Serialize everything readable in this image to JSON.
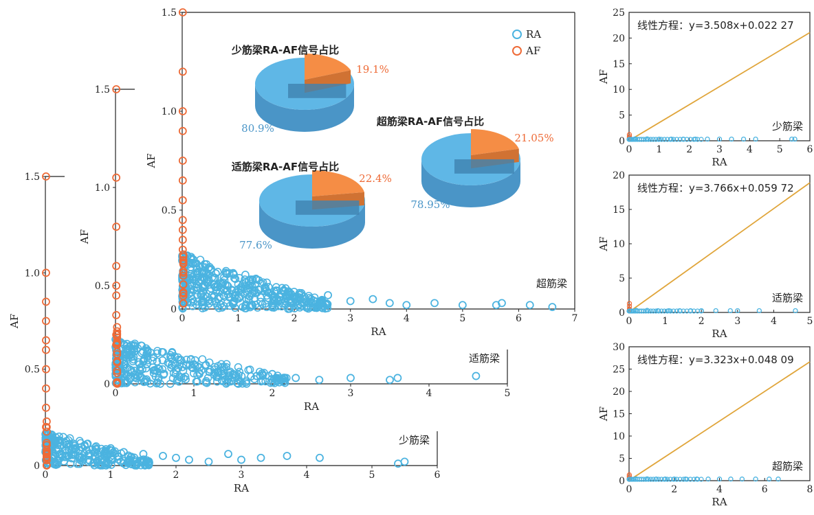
{
  "colors": {
    "ra": "#4bb3e0",
    "af": "#ee6a36",
    "fit_line": "#e0a53a",
    "pie_ra": "#5fb7e6",
    "pie_af": "#f58d45",
    "pie_ra_dark": "#4a95c7",
    "pie_af_dark": "#d07233"
  },
  "chart_data": [
    {
      "type": "scatter",
      "label": "少筋梁",
      "xlabel": "RA",
      "ylabel": "AF",
      "xlim": [
        0,
        6
      ],
      "ylim": [
        0,
        1.5
      ],
      "xticks": [
        "0",
        "1",
        "2",
        "3",
        "4",
        "5",
        "6"
      ],
      "yticks": [
        "0",
        "0.5",
        "1.0",
        "1.5"
      ],
      "series": [
        {
          "name": "RA",
          "marker": "circle-open",
          "points": [
            [
              0.2,
              0.12
            ],
            [
              0.4,
              0.08
            ],
            [
              0.6,
              0.1
            ],
            [
              0.8,
              0.06
            ],
            [
              1.0,
              0.09
            ],
            [
              1.2,
              0.07
            ],
            [
              1.5,
              0.06
            ],
            [
              1.8,
              0.05
            ],
            [
              2.0,
              0.04
            ],
            [
              2.2,
              0.03
            ],
            [
              2.5,
              0.02
            ],
            [
              2.8,
              0.06
            ],
            [
              3.0,
              0.03
            ],
            [
              3.3,
              0.04
            ],
            [
              3.7,
              0.05
            ],
            [
              4.2,
              0.04
            ],
            [
              5.4,
              0.01
            ],
            [
              5.5,
              0.02
            ]
          ]
        },
        {
          "name": "AF",
          "marker": "circle-open",
          "points": [
            [
              0.01,
              1.5
            ],
            [
              0.01,
              1.0
            ],
            [
              0.01,
              0.85
            ],
            [
              0.01,
              0.75
            ],
            [
              0.01,
              0.65
            ],
            [
              0.01,
              0.6
            ],
            [
              0.01,
              0.5
            ],
            [
              0.01,
              0.4
            ],
            [
              0.01,
              0.3
            ],
            [
              0.01,
              0.2
            ]
          ]
        }
      ]
    },
    {
      "type": "scatter",
      "label": "适筋梁",
      "xlabel": "RA",
      "ylabel": "AF",
      "xlim": [
        0,
        5
      ],
      "ylim": [
        0,
        1.5
      ],
      "xticks": [
        "0",
        "1",
        "2",
        "3",
        "4",
        "5"
      ],
      "yticks": [
        "0",
        "0.5",
        "1.0",
        "1.5"
      ],
      "series": [
        {
          "name": "RA",
          "marker": "circle-open",
          "points": [
            [
              0.2,
              0.15
            ],
            [
              0.4,
              0.1
            ],
            [
              0.6,
              0.12
            ],
            [
              0.8,
              0.08
            ],
            [
              1.0,
              0.1
            ],
            [
              1.2,
              0.06
            ],
            [
              1.5,
              0.05
            ],
            [
              1.8,
              0.04
            ],
            [
              2.0,
              0.05
            ],
            [
              2.3,
              0.03
            ],
            [
              2.6,
              0.02
            ],
            [
              3.0,
              0.03
            ],
            [
              3.5,
              0.02
            ],
            [
              3.6,
              0.03
            ],
            [
              4.6,
              0.04
            ]
          ]
        },
        {
          "name": "AF",
          "marker": "circle-open",
          "points": [
            [
              0.01,
              1.5
            ],
            [
              0.01,
              1.05
            ],
            [
              0.01,
              0.8
            ],
            [
              0.01,
              0.6
            ],
            [
              0.01,
              0.5
            ],
            [
              0.01,
              0.45
            ],
            [
              0.01,
              0.35
            ],
            [
              0.01,
              0.25
            ],
            [
              0.01,
              0.2
            ]
          ]
        }
      ]
    },
    {
      "type": "scatter",
      "label": "超筋梁",
      "xlabel": "RA",
      "ylabel": "AF",
      "xlim": [
        0,
        7
      ],
      "ylim": [
        0,
        1.5
      ],
      "xticks": [
        "0",
        "1",
        "2",
        "3",
        "4",
        "5",
        "6",
        "7"
      ],
      "yticks": [
        "0",
        "0.5",
        "1.0",
        "1.5"
      ],
      "legend": [
        "RA",
        "AF"
      ],
      "series": [
        {
          "name": "RA",
          "marker": "circle-open",
          "points": [
            [
              0.2,
              0.25
            ],
            [
              0.4,
              0.15
            ],
            [
              0.6,
              0.18
            ],
            [
              0.8,
              0.12
            ],
            [
              1.0,
              0.1
            ],
            [
              1.3,
              0.08
            ],
            [
              1.6,
              0.07
            ],
            [
              2.0,
              0.06
            ],
            [
              2.3,
              0.05
            ],
            [
              2.6,
              0.07
            ],
            [
              3.0,
              0.04
            ],
            [
              3.4,
              0.05
            ],
            [
              3.7,
              0.03
            ],
            [
              4.0,
              0.02
            ],
            [
              4.5,
              0.03
            ],
            [
              5.0,
              0.02
            ],
            [
              5.6,
              0.02
            ],
            [
              5.7,
              0.03
            ],
            [
              6.2,
              0.02
            ],
            [
              6.6,
              0.01
            ]
          ]
        },
        {
          "name": "AF",
          "marker": "circle-open",
          "points": [
            [
              0.01,
              1.5
            ],
            [
              0.01,
              1.2
            ],
            [
              0.01,
              1.0
            ],
            [
              0.01,
              0.9
            ],
            [
              0.01,
              0.75
            ],
            [
              0.01,
              0.65
            ],
            [
              0.01,
              0.55
            ],
            [
              0.01,
              0.45
            ],
            [
              0.01,
              0.4
            ],
            [
              0.01,
              0.35
            ],
            [
              0.01,
              0.3
            ]
          ]
        }
      ]
    },
    {
      "type": "pie",
      "title": "少筋梁RA-AF信号占比",
      "slices": [
        {
          "name": "RA",
          "value": 80.9,
          "label": "80.9%"
        },
        {
          "name": "AF",
          "value": 19.1,
          "label": "19.1%"
        }
      ]
    },
    {
      "type": "pie",
      "title": "适筋梁RA-AF信号占比",
      "slices": [
        {
          "name": "RA",
          "value": 77.6,
          "label": "77.6%"
        },
        {
          "name": "AF",
          "value": 22.4,
          "label": "22.4%"
        }
      ]
    },
    {
      "type": "pie",
      "title": "超筋梁RA-AF信号占比",
      "slices": [
        {
          "name": "RA",
          "value": 78.95,
          "label": "78.95%"
        },
        {
          "name": "AF",
          "value": 21.05,
          "label": "21.05%"
        }
      ]
    },
    {
      "type": "scatter",
      "label": "少筋梁",
      "equation": "线性方程：y=3.508x+0.022 27",
      "fit": {
        "slope": 3.508,
        "intercept": 0.02227
      },
      "xlabel": "RA",
      "ylabel": "AF",
      "xlim": [
        0,
        6
      ],
      "ylim": [
        0,
        25
      ],
      "xticks": [
        "0",
        "1",
        "2",
        "3",
        "4",
        "5",
        "6"
      ],
      "yticks": [
        "0",
        "5",
        "10",
        "15",
        "20",
        "25"
      ],
      "series": [
        {
          "name": "RA",
          "points": [
            [
              0.2,
              0.1
            ],
            [
              0.6,
              0.1
            ],
            [
              1.0,
              0.05
            ],
            [
              1.4,
              0.05
            ],
            [
              1.8,
              0.05
            ],
            [
              2.2,
              0.05
            ],
            [
              2.6,
              0.05
            ],
            [
              3.0,
              0.05
            ],
            [
              3.4,
              0.05
            ],
            [
              3.8,
              0.05
            ],
            [
              4.2,
              0.05
            ],
            [
              5.4,
              0.05
            ],
            [
              5.5,
              0.05
            ]
          ]
        },
        {
          "name": "AF",
          "points": [
            [
              0.01,
              1.2
            ],
            [
              0.01,
              0.8
            ],
            [
              0.01,
              0.5
            ],
            [
              0.01,
              0.3
            ]
          ]
        }
      ]
    },
    {
      "type": "scatter",
      "label": "适筋梁",
      "equation": "线性方程：y=3.766x+0.059 72",
      "fit": {
        "slope": 3.766,
        "intercept": 0.05972
      },
      "xlabel": "RA",
      "ylabel": "AF",
      "xlim": [
        0,
        5
      ],
      "ylim": [
        0,
        20
      ],
      "xticks": [
        "0",
        "1",
        "2",
        "3",
        "4",
        "5"
      ],
      "yticks": [
        "0",
        "5",
        "10",
        "15",
        "20"
      ],
      "series": [
        {
          "name": "RA",
          "points": [
            [
              0.2,
              0.1
            ],
            [
              0.5,
              0.1
            ],
            [
              0.8,
              0.05
            ],
            [
              1.1,
              0.05
            ],
            [
              1.4,
              0.05
            ],
            [
              1.7,
              0.05
            ],
            [
              2.0,
              0.05
            ],
            [
              2.4,
              0.05
            ],
            [
              2.8,
              0.05
            ],
            [
              3.0,
              0.05
            ],
            [
              3.6,
              0.05
            ],
            [
              4.6,
              0.05
            ]
          ]
        },
        {
          "name": "AF",
          "points": [
            [
              0.01,
              1.3
            ],
            [
              0.01,
              0.9
            ],
            [
              0.01,
              0.5
            ],
            [
              0.01,
              0.3
            ]
          ]
        }
      ]
    },
    {
      "type": "scatter",
      "label": "超筋梁",
      "equation": "线性方程：y=3.323x+0.048 09",
      "fit": {
        "slope": 3.323,
        "intercept": 0.04809
      },
      "xlabel": "RA",
      "ylabel": "AF",
      "xlim": [
        0,
        8
      ],
      "ylim": [
        0,
        30
      ],
      "xticks": [
        "0",
        "2",
        "4",
        "6",
        "8"
      ],
      "yticks": [
        "0",
        "5",
        "10",
        "15",
        "20",
        "25",
        "30"
      ],
      "series": [
        {
          "name": "RA",
          "points": [
            [
              0.3,
              0.1
            ],
            [
              0.8,
              0.1
            ],
            [
              1.2,
              0.05
            ],
            [
              1.6,
              0.05
            ],
            [
              2.0,
              0.05
            ],
            [
              2.5,
              0.05
            ],
            [
              3.0,
              0.05
            ],
            [
              3.5,
              0.05
            ],
            [
              4.0,
              0.05
            ],
            [
              4.5,
              0.05
            ],
            [
              5.0,
              0.05
            ],
            [
              5.6,
              0.05
            ],
            [
              6.2,
              0.05
            ],
            [
              6.6,
              0.05
            ]
          ]
        },
        {
          "name": "AF",
          "points": [
            [
              0.01,
              1.3
            ],
            [
              0.01,
              0.9
            ],
            [
              0.01,
              0.5
            ],
            [
              0.01,
              0.3
            ]
          ]
        }
      ]
    }
  ]
}
